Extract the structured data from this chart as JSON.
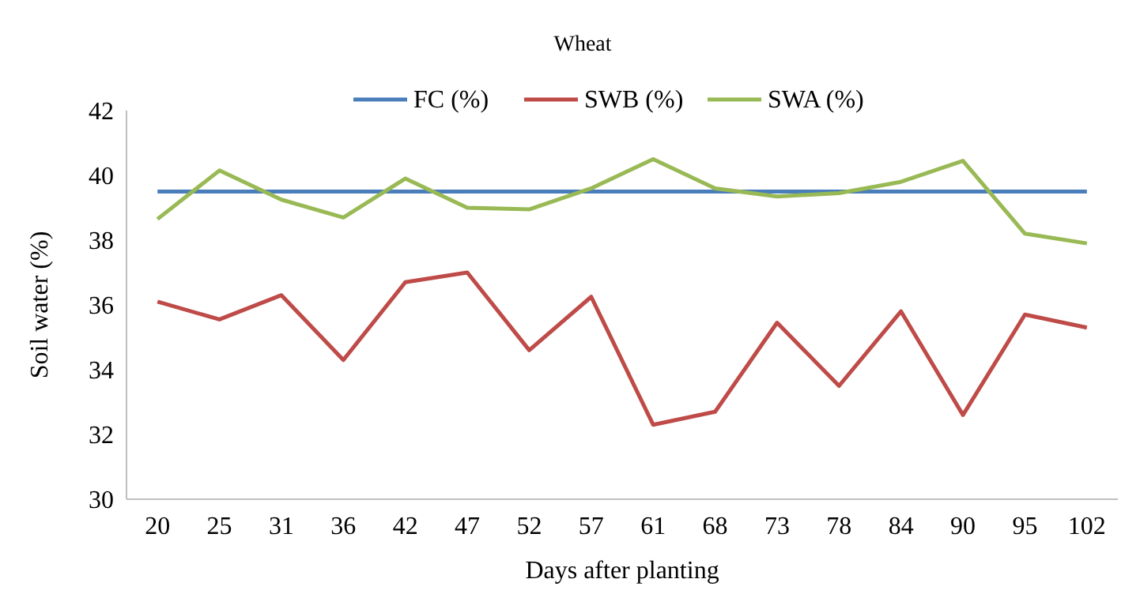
{
  "chart_data": {
    "type": "line",
    "title": "Wheat",
    "xlabel": "Days after planting",
    "ylabel": "Soil water (%)",
    "categories": [
      "20",
      "25",
      "31",
      "36",
      "42",
      "47",
      "52",
      "57",
      "61",
      "68",
      "73",
      "78",
      "84",
      "90",
      "95",
      "102"
    ],
    "series": [
      {
        "name": "FC (%)",
        "color": "#4a7ebb",
        "values": [
          39.5,
          39.5,
          39.5,
          39.5,
          39.5,
          39.5,
          39.5,
          39.5,
          39.5,
          39.5,
          39.5,
          39.5,
          39.5,
          39.5,
          39.5,
          39.5
        ]
      },
      {
        "name": "SWB (%)",
        "color": "#be4b48",
        "values": [
          36.1,
          35.55,
          36.3,
          34.3,
          36.7,
          37.0,
          34.6,
          36.25,
          32.3,
          32.7,
          35.45,
          33.5,
          35.8,
          32.6,
          35.7,
          35.3
        ]
      },
      {
        "name": "SWA (%)",
        "color": "#98b954",
        "values": [
          38.65,
          40.15,
          39.25,
          38.7,
          39.9,
          39.0,
          38.95,
          39.6,
          40.5,
          39.6,
          39.35,
          39.45,
          39.8,
          40.45,
          38.2,
          37.9
        ]
      }
    ],
    "ylim": [
      30,
      42
    ],
    "yticks": [
      30,
      32,
      34,
      36,
      38,
      40,
      42
    ],
    "grid": false,
    "legend": "top",
    "marker": "none",
    "line_style": "solid"
  }
}
